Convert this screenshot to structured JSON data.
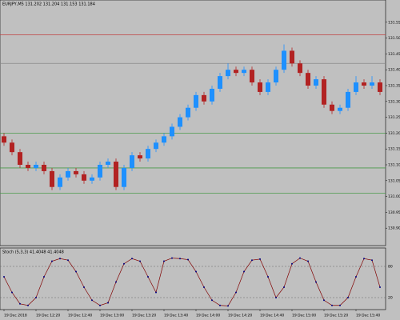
{
  "chart_data": [
    {
      "type": "candlestick",
      "title": "EURJPY,M5 131.202 131.204 131.153 131.184",
      "categories": [
        "19 Dec 2018",
        null,
        null,
        null,
        "19 Dec 12:20",
        null,
        null,
        null,
        "19 Dec 12:40",
        null,
        null,
        null,
        "19 Dec 13:00",
        null,
        null,
        null,
        "19 Dec 13:20",
        null,
        null,
        null,
        "19 Dec 13:40",
        null,
        null,
        null,
        "19 Dec 14:00",
        null,
        null,
        null,
        "19 Dec 14:20",
        null,
        null,
        null,
        "19 Dec 14:40",
        null,
        null,
        null,
        "19 Dec 15:00",
        null,
        null,
        null,
        "19 Dec 15:20",
        null,
        null,
        null,
        "19 Dec 15:40",
        null,
        null,
        null
      ],
      "ohlc": [
        [
          131.19,
          131.2,
          131.16,
          131.17
        ],
        [
          131.17,
          131.18,
          131.13,
          131.14
        ],
        [
          131.14,
          131.15,
          131.09,
          131.1
        ],
        [
          131.1,
          131.11,
          131.08,
          131.09
        ],
        [
          131.09,
          131.11,
          131.08,
          131.1
        ],
        [
          131.1,
          131.11,
          131.07,
          131.08
        ],
        [
          131.08,
          131.09,
          131.02,
          131.03
        ],
        [
          131.03,
          131.07,
          131.02,
          131.06
        ],
        [
          131.06,
          131.09,
          131.05,
          131.08
        ],
        [
          131.08,
          131.09,
          131.06,
          131.07
        ],
        [
          131.07,
          131.08,
          131.04,
          131.05
        ],
        [
          131.05,
          131.07,
          131.04,
          131.06
        ],
        [
          131.06,
          131.11,
          131.05,
          131.1
        ],
        [
          131.1,
          131.12,
          131.09,
          131.11
        ],
        [
          131.11,
          131.12,
          131.02,
          131.03
        ],
        [
          131.03,
          131.1,
          131.02,
          131.09
        ],
        [
          131.09,
          131.14,
          131.08,
          131.13
        ],
        [
          131.13,
          131.14,
          131.11,
          131.12
        ],
        [
          131.12,
          131.16,
          131.11,
          131.15
        ],
        [
          131.15,
          131.18,
          131.14,
          131.17
        ],
        [
          131.17,
          131.2,
          131.16,
          131.19
        ],
        [
          131.19,
          131.23,
          131.18,
          131.22
        ],
        [
          131.22,
          131.26,
          131.21,
          131.25
        ],
        [
          131.25,
          131.29,
          131.24,
          131.28
        ],
        [
          131.28,
          131.33,
          131.27,
          131.32
        ],
        [
          131.32,
          131.33,
          131.29,
          131.3
        ],
        [
          131.3,
          131.35,
          131.29,
          131.34
        ],
        [
          131.34,
          131.39,
          131.33,
          131.38
        ],
        [
          131.38,
          131.42,
          131.37,
          131.4
        ],
        [
          131.4,
          131.41,
          131.38,
          131.39
        ],
        [
          131.39,
          131.41,
          131.38,
          131.4
        ],
        [
          131.4,
          131.41,
          131.35,
          131.36
        ],
        [
          131.36,
          131.37,
          131.32,
          131.33
        ],
        [
          131.33,
          131.37,
          131.32,
          131.36
        ],
        [
          131.36,
          131.41,
          131.35,
          131.4
        ],
        [
          131.4,
          131.48,
          131.39,
          131.46
        ],
        [
          131.46,
          131.47,
          131.41,
          131.42
        ],
        [
          131.42,
          131.43,
          131.38,
          131.39
        ],
        [
          131.39,
          131.4,
          131.34,
          131.35
        ],
        [
          131.35,
          131.38,
          131.34,
          131.37
        ],
        [
          131.37,
          131.38,
          131.28,
          131.29
        ],
        [
          131.29,
          131.3,
          131.26,
          131.27
        ],
        [
          131.27,
          131.29,
          131.26,
          131.28
        ],
        [
          131.28,
          131.34,
          131.27,
          131.33
        ],
        [
          131.33,
          131.38,
          131.32,
          131.36
        ],
        [
          131.36,
          131.37,
          131.34,
          131.35
        ],
        [
          131.35,
          131.38,
          131.34,
          131.36
        ],
        [
          131.36,
          131.37,
          131.32,
          131.33
        ]
      ],
      "up_color": "#1e90ff",
      "down_color": "#b22222",
      "levels": [
        {
          "value": 131.51,
          "color": "#c04040"
        },
        {
          "value": 131.42,
          "color": "#888888"
        },
        {
          "value": 131.2,
          "color": "#4a9a4a"
        },
        {
          "value": 131.09,
          "color": "#4a9a4a"
        },
        {
          "value": 131.01,
          "color": "#4a9a4a"
        }
      ],
      "ylim": [
        130.85,
        131.6
      ],
      "yticks": [
        {
          "value": 130.9,
          "label": "130.90"
        },
        {
          "value": 130.95,
          "label": "130.95"
        },
        {
          "value": 131.0,
          "label": "131.00"
        },
        {
          "value": 131.05,
          "label": "131.05"
        },
        {
          "value": 131.1,
          "label": "131.10"
        },
        {
          "value": 131.15,
          "label": "131.15"
        },
        {
          "value": 131.2,
          "label": "131.20"
        },
        {
          "value": 131.25,
          "label": "131.25"
        },
        {
          "value": 131.3,
          "label": "131.30"
        },
        {
          "value": 131.35,
          "label": "131.35"
        },
        {
          "value": 131.4,
          "label": "131.40"
        },
        {
          "value": 131.45,
          "label": "131.45"
        },
        {
          "value": 131.5,
          "label": "131.50"
        },
        {
          "value": 131.55,
          "label": "131.55"
        }
      ]
    },
    {
      "type": "line",
      "title": "Stoch (5,3,3) 41.4048 41.4048",
      "values": [
        60,
        30,
        8,
        5,
        20,
        60,
        90,
        95,
        92,
        70,
        40,
        15,
        5,
        10,
        50,
        85,
        95,
        90,
        60,
        30,
        90,
        96,
        95,
        93,
        70,
        40,
        15,
        5,
        4,
        30,
        70,
        92,
        94,
        60,
        20,
        40,
        85,
        96,
        90,
        50,
        15,
        5,
        5,
        20,
        60,
        95,
        92,
        40
      ],
      "color": "#800000",
      "marker_color": "#000080",
      "ylim": [
        0,
        100
      ],
      "yticks": [
        20,
        80
      ]
    }
  ]
}
